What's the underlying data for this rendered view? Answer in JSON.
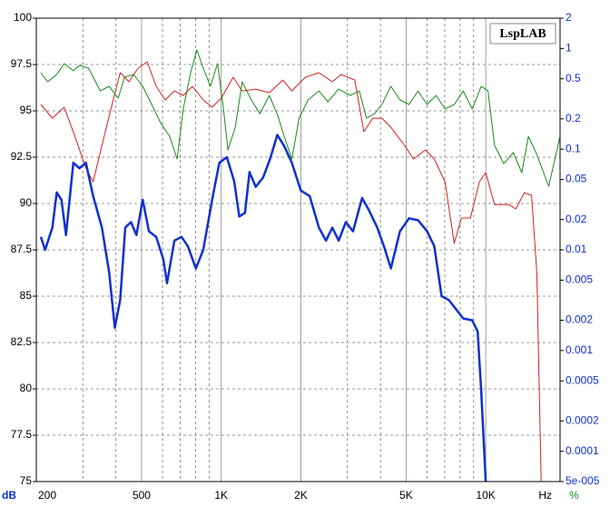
{
  "chart_data": {
    "type": "line",
    "brand": "LspLAB",
    "y_unit": "dB",
    "x_unit": "Hz",
    "y2_unit": "%",
    "xscale": "log",
    "y2scale": "log",
    "grid": true,
    "xlim": [
      200,
      19100
    ],
    "xticks": [
      200,
      500,
      {
        "value": 1000,
        "label": "1K"
      },
      {
        "value": 2000,
        "label": "2K"
      },
      {
        "value": 5000,
        "label": "5K"
      },
      {
        "value": 10000,
        "label": "10K"
      }
    ],
    "xgrid_minor": [
      300,
      400,
      600,
      700,
      800,
      900,
      3000,
      4000,
      6000,
      7000,
      8000,
      9000
    ],
    "ylim": [
      75,
      100
    ],
    "yticks": [
      75,
      77.5,
      80,
      82.5,
      85,
      87.5,
      90,
      92.5,
      95,
      97.5,
      100
    ],
    "y2lim": [
      5e-05,
      2
    ],
    "y2ticks": [
      {
        "value": 5e-05,
        "label": "5e-005"
      },
      0.0001,
      0.0002,
      0.0005,
      0.001,
      0.002,
      0.005,
      0.01,
      0.02,
      0.05,
      0.1,
      0.2,
      0.5,
      1,
      2
    ],
    "series": [
      {
        "color": "#d42020",
        "axis": "y2",
        "width": 1,
        "x": [
          208,
          230,
          255,
          280,
          308,
          328,
          354,
          383,
          415,
          448,
          485,
          525,
          568,
          614,
          665,
          719,
          778,
          855,
          924,
          1000,
          1110,
          1200,
          1350,
          1520,
          1710,
          1850,
          2080,
          2340,
          2630,
          2840,
          3200,
          3460,
          3740,
          4050,
          4380,
          4930,
          5330,
          5910,
          6390,
          7020,
          7600,
          8090,
          8750,
          9460,
          10000,
          10800,
          12200,
          13000,
          14000,
          14900,
          15600,
          16200
        ],
        "values": [
          0.278,
          0.203,
          0.261,
          0.134,
          0.0649,
          0.0474,
          0.109,
          0.251,
          0.575,
          0.467,
          0.638,
          0.738,
          0.421,
          0.308,
          0.379,
          0.342,
          0.421,
          0.308,
          0.261,
          0.321,
          0.518,
          0.379,
          0.395,
          0.364,
          0.486,
          0.379,
          0.518,
          0.575,
          0.467,
          0.551,
          0.486,
          0.149,
          0.203,
          0.203,
          0.165,
          0.109,
          0.0798,
          0.0982,
          0.0798,
          0.0474,
          0.0116,
          0.0207,
          0.0207,
          0.0474,
          0.0585,
          0.0282,
          0.0282,
          0.0255,
          0.037,
          0.0348,
          0.00594,
          5e-05
        ]
      },
      {
        "color": "#1a8a1a",
        "axis": "y2",
        "width": 1,
        "x": [
          208,
          221,
          239,
          255,
          276,
          291,
          315,
          349,
          377,
          408,
          431,
          467,
          505,
          546,
          590,
          639,
          681,
          719,
          766,
          809,
          855,
          910,
          969,
          1020,
          1060,
          1130,
          1200,
          1300,
          1400,
          1520,
          1640,
          1730,
          1850,
          1970,
          2130,
          2340,
          2530,
          2780,
          3080,
          3330,
          3540,
          3800,
          4050,
          4380,
          4740,
          5130,
          5550,
          6000,
          6490,
          7020,
          7600,
          8220,
          8890,
          9610,
          10200,
          10800,
          11700,
          12700,
          13700,
          14500,
          15600,
          17300,
          19100
        ],
        "values": [
          0.575,
          0.467,
          0.551,
          0.708,
          0.6,
          0.679,
          0.638,
          0.379,
          0.421,
          0.321,
          0.518,
          0.551,
          0.421,
          0.278,
          0.183,
          0.134,
          0.0798,
          0.251,
          0.575,
          0.966,
          0.638,
          0.421,
          0.708,
          0.251,
          0.0982,
          0.165,
          0.467,
          0.308,
          0.225,
          0.342,
          0.212,
          0.134,
          0.0798,
          0.203,
          0.308,
          0.379,
          0.296,
          0.395,
          0.342,
          0.379,
          0.203,
          0.225,
          0.278,
          0.421,
          0.308,
          0.278,
          0.379,
          0.278,
          0.342,
          0.251,
          0.278,
          0.379,
          0.251,
          0.421,
          0.379,
          0.109,
          0.0719,
          0.0923,
          0.0585,
          0.134,
          0.0885,
          0.0428,
          0.134
        ]
      },
      {
        "color": "#1030d0",
        "axis": "y",
        "width": 2.5,
        "x": [
          208,
          216,
          230,
          239,
          249,
          259,
          276,
          291,
          308,
          328,
          354,
          377,
          396,
          415,
          434,
          456,
          478,
          505,
          533,
          568,
          604,
          624,
          665,
          708,
          748,
          802,
          855,
          924,
          984,
          1050,
          1120,
          1170,
          1230,
          1280,
          1350,
          1440,
          1530,
          1630,
          1730,
          1850,
          2000,
          2160,
          2340,
          2490,
          2630,
          2780,
          2960,
          3150,
          3410,
          3600,
          3890,
          4120,
          4380,
          4740,
          5130,
          5550,
          6000,
          6390,
          6810,
          7250,
          7720,
          8220,
          8890,
          9320,
          9610,
          10000
        ],
        "values": [
          88.2,
          87.5,
          88.7,
          90.6,
          90.2,
          88.3,
          92.2,
          91.9,
          92.2,
          90.4,
          88.7,
          86.3,
          83.3,
          84.8,
          88.7,
          89.0,
          88.3,
          90.2,
          88.5,
          88.2,
          87.0,
          85.7,
          88.0,
          88.2,
          87.7,
          86.5,
          87.5,
          90.2,
          92.2,
          92.5,
          91.2,
          89.3,
          89.5,
          91.7,
          90.9,
          91.4,
          92.4,
          93.7,
          93.1,
          92.2,
          90.7,
          90.4,
          88.7,
          88.0,
          88.7,
          88.0,
          89.0,
          88.5,
          90.3,
          89.7,
          88.7,
          87.7,
          86.5,
          88.5,
          89.2,
          89.1,
          88.5,
          87.7,
          85.0,
          84.8,
          84.3,
          83.8,
          83.7,
          83.1,
          79.9,
          75.0
        ]
      }
    ]
  }
}
